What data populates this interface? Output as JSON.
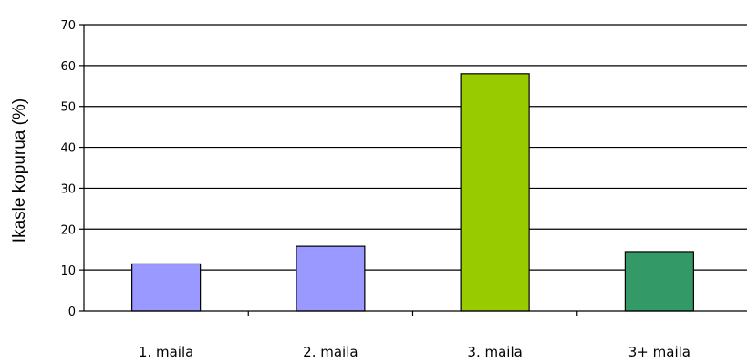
{
  "chart_data": {
    "type": "bar",
    "categories": [
      "1. maila",
      "2. maila",
      "3. maila",
      "3+ maila"
    ],
    "values": [
      11.5,
      15.8,
      58.0,
      14.5
    ],
    "bar_colors": [
      "#9999ff",
      "#9999ff",
      "#99cc00",
      "#339966"
    ],
    "title": "",
    "xlabel": "",
    "ylabel": "Ikasle kopurua (%)",
    "ylim": [
      0,
      70
    ],
    "yticks": [
      0,
      10,
      20,
      30,
      40,
      50,
      60,
      70
    ],
    "grid": "horizontal",
    "legend": "none"
  }
}
